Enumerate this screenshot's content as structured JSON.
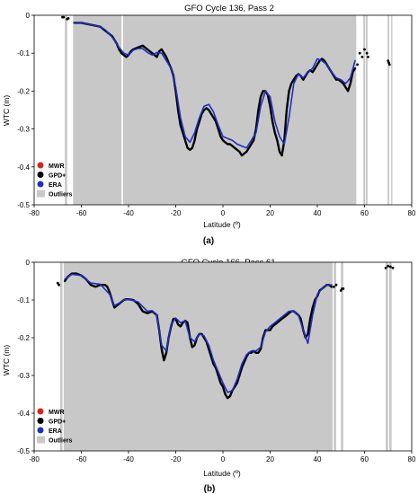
{
  "colors": {
    "mwr": "#e0201a",
    "gpd": "#000000",
    "era": "#1f2fbf",
    "outliers": "#c8c8c8",
    "axis": "#000000"
  },
  "chart_data": [
    {
      "type": "line",
      "title": "GFO Cycle 136, Pass 2",
      "panel_label": "(a)",
      "xlabel": "Latitude (º)",
      "ylabel": "WTC (m)",
      "xlim": [
        -80,
        80
      ],
      "ylim": [
        -0.5,
        0
      ],
      "x_ticks": [
        "-80",
        "-60",
        "-40",
        "-20",
        "0",
        "20",
        "40",
        "60",
        "80"
      ],
      "y_ticks": [
        "0",
        "-0.1",
        "-0.2",
        "-0.3",
        "-0.4",
        "-0.5"
      ],
      "grid": false,
      "legend_position": "bottom-left",
      "legend": [
        "MWR",
        "GPD+",
        "ERA",
        "Outliers"
      ],
      "outlier_bands": [
        [
          -67,
          -66
        ],
        [
          -63.5,
          -43
        ],
        [
          -42.3,
          56.5
        ],
        [
          59.5,
          60.3
        ],
        [
          60.6,
          61.3
        ],
        [
          69.8,
          70.5
        ],
        [
          71.3,
          71.8
        ]
      ],
      "series": [
        {
          "key": "gpd",
          "x": [
            -63,
            -60,
            -56,
            -52,
            -50,
            -49,
            -48,
            -47,
            -46,
            -45,
            -44,
            -43,
            -42,
            -41,
            -40,
            -39,
            -38,
            -36,
            -34,
            -32,
            -30,
            -28,
            -27,
            -26,
            -25,
            -24,
            -23,
            -22,
            -21,
            -20,
            -19,
            -18,
            -17,
            -16,
            -15,
            -14,
            -13,
            -12,
            -11,
            -10,
            -9,
            -8,
            -7,
            -6,
            -5,
            -4,
            -3,
            -2,
            -1,
            0,
            1,
            2,
            3,
            4,
            5,
            6,
            7,
            8,
            9,
            10,
            11,
            12,
            13,
            14,
            15,
            16,
            17,
            18,
            19,
            20,
            21,
            22,
            23,
            24,
            25,
            26,
            27,
            28,
            29,
            30,
            31,
            32,
            33,
            34,
            35,
            36,
            37,
            38,
            39,
            40,
            41,
            42,
            43,
            44,
            45,
            46,
            47,
            48,
            49,
            50,
            51,
            52,
            53,
            54,
            55,
            56
          ],
          "y": [
            -0.02,
            -0.02,
            -0.025,
            -0.03,
            -0.04,
            -0.045,
            -0.05,
            -0.055,
            -0.065,
            -0.075,
            -0.09,
            -0.1,
            -0.105,
            -0.11,
            -0.105,
            -0.095,
            -0.09,
            -0.085,
            -0.08,
            -0.09,
            -0.1,
            -0.11,
            -0.095,
            -0.09,
            -0.1,
            -0.11,
            -0.125,
            -0.14,
            -0.16,
            -0.2,
            -0.25,
            -0.29,
            -0.31,
            -0.33,
            -0.35,
            -0.355,
            -0.35,
            -0.33,
            -0.3,
            -0.28,
            -0.26,
            -0.25,
            -0.245,
            -0.25,
            -0.26,
            -0.27,
            -0.28,
            -0.3,
            -0.32,
            -0.33,
            -0.335,
            -0.34,
            -0.34,
            -0.345,
            -0.35,
            -0.355,
            -0.36,
            -0.37,
            -0.365,
            -0.36,
            -0.35,
            -0.34,
            -0.33,
            -0.3,
            -0.25,
            -0.215,
            -0.2,
            -0.2,
            -0.21,
            -0.24,
            -0.28,
            -0.31,
            -0.33,
            -0.36,
            -0.37,
            -0.33,
            -0.25,
            -0.2,
            -0.18,
            -0.17,
            -0.16,
            -0.155,
            -0.16,
            -0.17,
            -0.16,
            -0.15,
            -0.145,
            -0.15,
            -0.14,
            -0.13,
            -0.12,
            -0.115,
            -0.12,
            -0.13,
            -0.14,
            -0.15,
            -0.16,
            -0.17,
            -0.17,
            -0.175,
            -0.18,
            -0.19,
            -0.2,
            -0.18,
            -0.15,
            -0.14
          ]
        },
        {
          "key": "era",
          "x": [
            -63,
            -60,
            -56,
            -52,
            -50,
            -48,
            -46,
            -44,
            -42,
            -40,
            -38,
            -36,
            -34,
            -32,
            -30,
            -28,
            -26,
            -24,
            -22,
            -20,
            -18,
            -16,
            -14,
            -12,
            -10,
            -8,
            -6,
            -4,
            -2,
            0,
            2,
            4,
            6,
            8,
            10,
            12,
            14,
            16,
            18,
            20,
            22,
            24,
            26,
            28,
            30,
            32,
            34,
            36,
            38,
            40,
            42,
            44,
            46,
            48,
            50,
            52,
            54,
            56
          ],
          "y": [
            -0.02,
            -0.02,
            -0.025,
            -0.03,
            -0.038,
            -0.05,
            -0.065,
            -0.085,
            -0.1,
            -0.105,
            -0.092,
            -0.088,
            -0.088,
            -0.098,
            -0.105,
            -0.098,
            -0.1,
            -0.12,
            -0.14,
            -0.19,
            -0.27,
            -0.32,
            -0.335,
            -0.31,
            -0.27,
            -0.24,
            -0.235,
            -0.255,
            -0.29,
            -0.32,
            -0.325,
            -0.33,
            -0.34,
            -0.345,
            -0.35,
            -0.33,
            -0.31,
            -0.24,
            -0.2,
            -0.215,
            -0.28,
            -0.32,
            -0.34,
            -0.27,
            -0.18,
            -0.155,
            -0.165,
            -0.15,
            -0.14,
            -0.115,
            -0.12,
            -0.13,
            -0.15,
            -0.165,
            -0.17,
            -0.18,
            -0.165,
            -0.12
          ]
        }
      ],
      "scatter_points": [
        {
          "x": -68,
          "y": -0.005
        },
        {
          "x": -67.5,
          "y": -0.005
        },
        {
          "x": -66,
          "y": -0.01
        },
        {
          "x": -65.5,
          "y": -0.008
        },
        {
          "x": 57,
          "y": -0.13
        },
        {
          "x": 58,
          "y": -0.1
        },
        {
          "x": 59,
          "y": -0.11
        },
        {
          "x": 60,
          "y": -0.09
        },
        {
          "x": 61,
          "y": -0.1
        },
        {
          "x": 61.5,
          "y": -0.11
        },
        {
          "x": 70,
          "y": -0.12
        },
        {
          "x": 70.3,
          "y": -0.125
        },
        {
          "x": 70.6,
          "y": -0.13
        }
      ]
    },
    {
      "type": "line",
      "title": "GFO Cycle 166, Pass 61",
      "panel_label": "(b)",
      "xlabel": "Latitude (º)",
      "ylabel": "WTC (m)",
      "xlim": [
        -80,
        80
      ],
      "ylim": [
        -0.5,
        0
      ],
      "x_ticks": [
        "-80",
        "-60",
        "-40",
        "-20",
        "0",
        "20",
        "40",
        "60",
        "80"
      ],
      "y_ticks": [
        "0",
        "-0.1",
        "-0.2",
        "-0.3",
        "-0.4",
        "-0.5"
      ],
      "grid": false,
      "legend_position": "bottom-left",
      "legend": [
        "MWR",
        "GPD+",
        "ERA",
        "Outliers"
      ],
      "outlier_bands": [
        [
          -69,
          -68
        ],
        [
          -67.5,
          46.5
        ],
        [
          47,
          48
        ],
        [
          50,
          51
        ],
        [
          69,
          70
        ],
        [
          70.5,
          71.5
        ]
      ],
      "series": [
        {
          "key": "gpd",
          "x": [
            -67,
            -66,
            -65,
            -64,
            -62,
            -60,
            -58,
            -56,
            -54,
            -52,
            -50,
            -49,
            -48,
            -47,
            -46,
            -45,
            -44,
            -43,
            -42,
            -41,
            -40,
            -38,
            -36,
            -34,
            -32,
            -30,
            -29,
            -28,
            -27,
            -26,
            -25,
            -24,
            -23,
            -22,
            -21,
            -20,
            -19,
            -18,
            -17,
            -16,
            -15,
            -14,
            -13,
            -12,
            -11,
            -10,
            -9,
            -8,
            -7,
            -6,
            -5,
            -4,
            -3,
            -2,
            -1,
            0,
            1,
            2,
            3,
            4,
            5,
            6,
            7,
            8,
            9,
            10,
            11,
            12,
            13,
            14,
            15,
            16,
            17,
            18,
            19,
            20,
            21,
            22,
            23,
            24,
            25,
            26,
            27,
            28,
            29,
            30,
            31,
            32,
            33,
            34,
            35,
            36,
            37,
            38,
            39,
            40,
            41,
            42,
            43,
            44,
            45,
            46
          ],
          "y": [
            -0.05,
            -0.04,
            -0.035,
            -0.03,
            -0.03,
            -0.035,
            -0.045,
            -0.06,
            -0.065,
            -0.06,
            -0.06,
            -0.065,
            -0.08,
            -0.1,
            -0.12,
            -0.115,
            -0.11,
            -0.105,
            -0.1,
            -0.098,
            -0.098,
            -0.1,
            -0.11,
            -0.13,
            -0.135,
            -0.13,
            -0.135,
            -0.14,
            -0.18,
            -0.23,
            -0.26,
            -0.24,
            -0.2,
            -0.17,
            -0.15,
            -0.15,
            -0.165,
            -0.17,
            -0.16,
            -0.155,
            -0.16,
            -0.2,
            -0.225,
            -0.22,
            -0.2,
            -0.19,
            -0.19,
            -0.2,
            -0.21,
            -0.23,
            -0.25,
            -0.27,
            -0.28,
            -0.3,
            -0.32,
            -0.33,
            -0.35,
            -0.36,
            -0.355,
            -0.34,
            -0.33,
            -0.32,
            -0.3,
            -0.28,
            -0.265,
            -0.25,
            -0.24,
            -0.24,
            -0.235,
            -0.24,
            -0.24,
            -0.23,
            -0.2,
            -0.18,
            -0.18,
            -0.18,
            -0.17,
            -0.165,
            -0.16,
            -0.155,
            -0.15,
            -0.145,
            -0.14,
            -0.135,
            -0.13,
            -0.13,
            -0.135,
            -0.14,
            -0.15,
            -0.18,
            -0.2,
            -0.19,
            -0.15,
            -0.12,
            -0.1,
            -0.09,
            -0.075,
            -0.07,
            -0.065,
            -0.06,
            -0.06,
            -0.065
          ]
        },
        {
          "key": "era",
          "x": [
            -67,
            -64,
            -60,
            -56,
            -52,
            -48,
            -46,
            -44,
            -42,
            -40,
            -36,
            -32,
            -30,
            -28,
            -26,
            -24,
            -22,
            -20,
            -18,
            -16,
            -14,
            -12,
            -10,
            -8,
            -6,
            -4,
            -2,
            0,
            2,
            4,
            6,
            8,
            10,
            12,
            14,
            16,
            18,
            20,
            22,
            24,
            26,
            28,
            30,
            32,
            34,
            36,
            38,
            40,
            42,
            44,
            46
          ],
          "y": [
            -0.045,
            -0.032,
            -0.035,
            -0.055,
            -0.058,
            -0.085,
            -0.115,
            -0.108,
            -0.1,
            -0.098,
            -0.105,
            -0.13,
            -0.128,
            -0.14,
            -0.22,
            -0.235,
            -0.165,
            -0.148,
            -0.16,
            -0.155,
            -0.2,
            -0.21,
            -0.19,
            -0.195,
            -0.22,
            -0.26,
            -0.29,
            -0.32,
            -0.345,
            -0.34,
            -0.31,
            -0.27,
            -0.245,
            -0.235,
            -0.235,
            -0.225,
            -0.185,
            -0.17,
            -0.16,
            -0.15,
            -0.14,
            -0.13,
            -0.13,
            -0.14,
            -0.18,
            -0.215,
            -0.14,
            -0.085,
            -0.07,
            -0.06,
            -0.06
          ]
        }
      ],
      "scatter_points": [
        {
          "x": -70,
          "y": -0.055
        },
        {
          "x": -69.5,
          "y": -0.06
        },
        {
          "x": 47,
          "y": -0.065
        },
        {
          "x": 48,
          "y": -0.06
        },
        {
          "x": 50,
          "y": -0.075
        },
        {
          "x": 50.5,
          "y": -0.07
        },
        {
          "x": 51,
          "y": -0.07
        },
        {
          "x": 69,
          "y": -0.015
        },
        {
          "x": 70,
          "y": -0.01
        },
        {
          "x": 71,
          "y": -0.012
        },
        {
          "x": 72,
          "y": -0.015
        }
      ]
    }
  ]
}
